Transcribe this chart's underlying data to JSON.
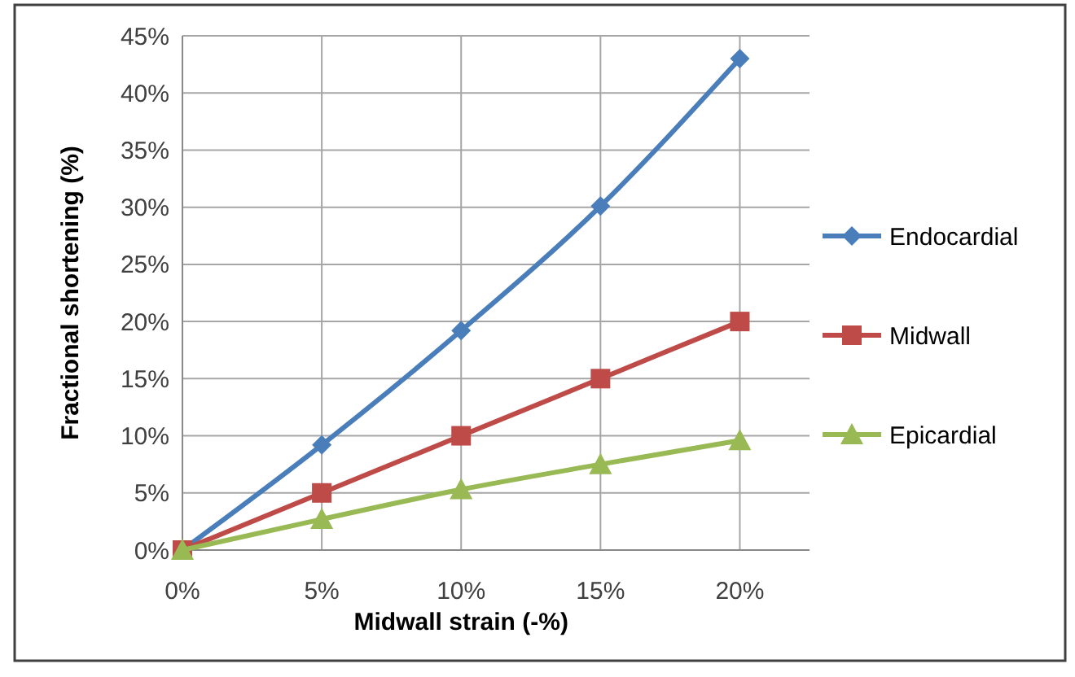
{
  "chart_data": {
    "type": "line",
    "xlabel": "Midwall strain (-%)",
    "ylabel": "Fractional shortening (%)",
    "x": [
      0,
      5,
      10,
      15,
      20
    ],
    "xlim": [
      0,
      22.5
    ],
    "xticks": [
      {
        "value": 0,
        "label": "0%"
      },
      {
        "value": 5,
        "label": "5%"
      },
      {
        "value": 10,
        "label": "10%"
      },
      {
        "value": 15,
        "label": "15%"
      },
      {
        "value": 20,
        "label": "20%"
      }
    ],
    "ylim": [
      0,
      45
    ],
    "yticks": [
      {
        "value": 0,
        "label": "0%"
      },
      {
        "value": 5,
        "label": "5%"
      },
      {
        "value": 10,
        "label": "10%"
      },
      {
        "value": 15,
        "label": "15%"
      },
      {
        "value": 20,
        "label": "20%"
      },
      {
        "value": 25,
        "label": "25%"
      },
      {
        "value": 30,
        "label": "30%"
      },
      {
        "value": 35,
        "label": "35%"
      },
      {
        "value": 40,
        "label": "40%"
      },
      {
        "value": 45,
        "label": "45%"
      }
    ],
    "grid": true,
    "legend": "right",
    "series": [
      {
        "name": "Endocardial",
        "color": "#4a7ebb",
        "marker": "diamond",
        "values": [
          0,
          9.2,
          19.2,
          30.1,
          43
        ]
      },
      {
        "name": "Midwall",
        "color": "#be4b48",
        "marker": "square",
        "values": [
          0,
          5,
          10,
          15,
          20
        ]
      },
      {
        "name": "Epicardial",
        "color": "#98b954",
        "marker": "triangle",
        "values": [
          0,
          2.7,
          5.3,
          7.5,
          9.6
        ]
      }
    ]
  }
}
